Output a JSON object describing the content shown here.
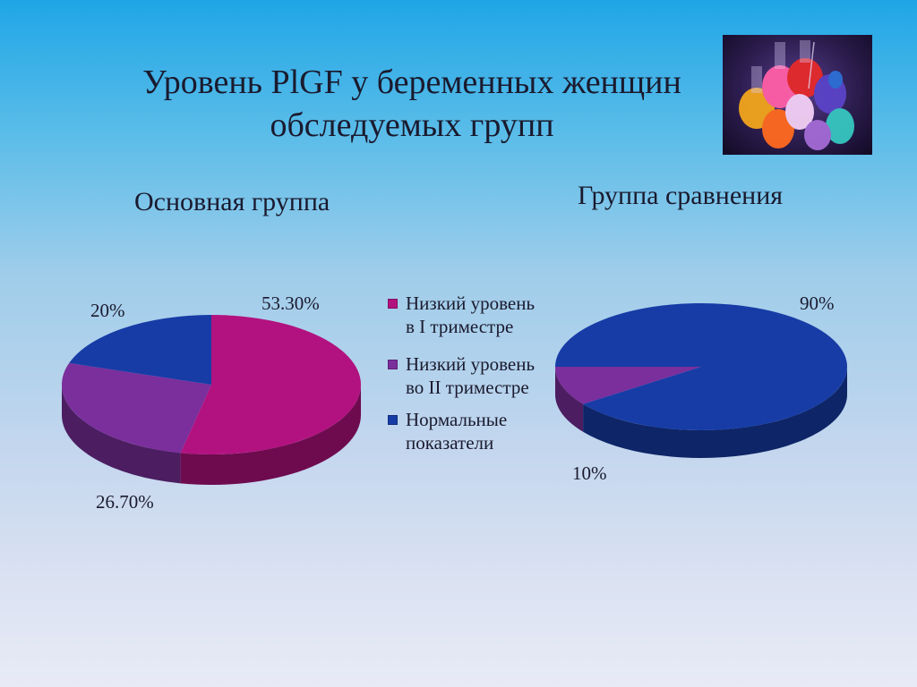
{
  "slide": {
    "title": "Уровень PlGF у беременных женщин обследуемых групп"
  },
  "colors": {
    "low_I": "#b2127f",
    "low_II": "#7a2f9c",
    "normal": "#173ca6"
  },
  "legend": [
    {
      "label": "Низкий уровень в I триместре",
      "color": "#b2127f"
    },
    {
      "label": "Низкий уровень во II триместре",
      "color": "#7a2f9c"
    },
    {
      "label": "Нормальные показатели",
      "color": "#173ca6"
    }
  ],
  "chart_data": [
    {
      "type": "pie",
      "title": "Основная группа",
      "categories": [
        "Низкий уровень в I триместре",
        "Низкий уровень во II триместре",
        "Нормальные показатели"
      ],
      "values": [
        53.3,
        26.7,
        20
      ],
      "labels": [
        "53.30%",
        "26.70%",
        "20%"
      ],
      "colors": [
        "#b2127f",
        "#7a2f9c",
        "#173ca6"
      ],
      "style": "3d",
      "legend": "right"
    },
    {
      "type": "pie",
      "title": "Группа сравнения",
      "categories": [
        "Низкий уровень во II триместре",
        "Нормальные показатели"
      ],
      "values": [
        10,
        90
      ],
      "labels": [
        "10%",
        "90%"
      ],
      "colors": [
        "#7a2f9c",
        "#173ca6"
      ],
      "style": "3d"
    }
  ]
}
